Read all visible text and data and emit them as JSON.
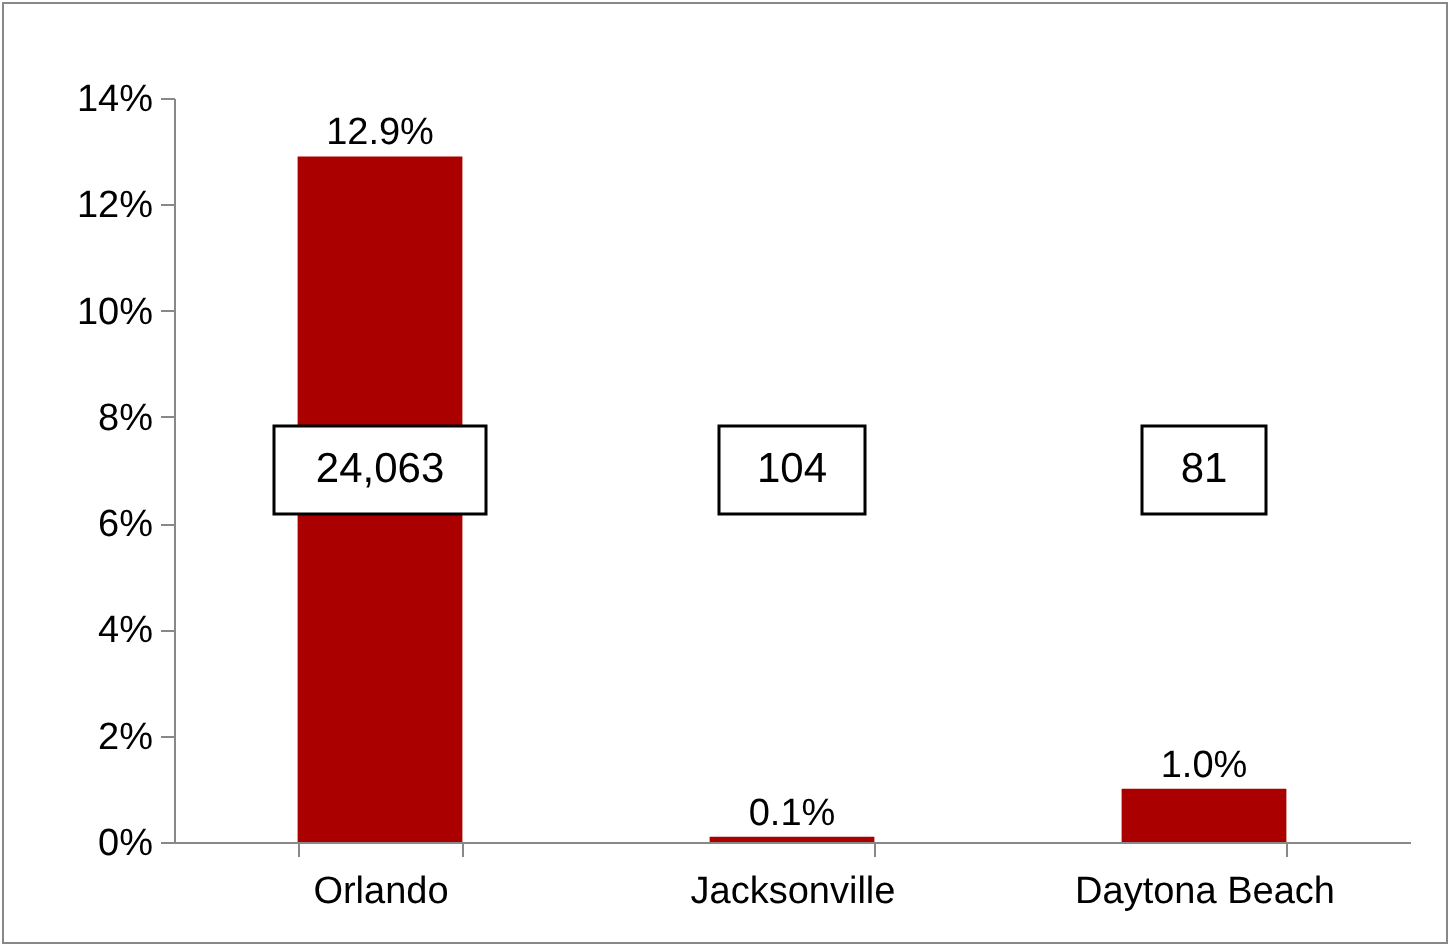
{
  "chart_data": {
    "type": "bar",
    "categories": [
      "Orlando",
      "Jacksonville",
      "Daytona Beach"
    ],
    "values": [
      12.9,
      0.1,
      1.0
    ],
    "value_labels": [
      "12.9%",
      "0.1%",
      "1.0%"
    ],
    "color": "#aa0000",
    "ylim": [
      0,
      14
    ],
    "yticks": [
      {
        "value": 0,
        "label": "0%"
      },
      {
        "value": 2,
        "label": "2%"
      },
      {
        "value": 4,
        "label": "4%"
      },
      {
        "value": 6,
        "label": "6%"
      },
      {
        "value": 8,
        "label": "8%"
      },
      {
        "value": 10,
        "label": "10%"
      },
      {
        "value": 12,
        "label": "12%"
      },
      {
        "value": 14,
        "label": "14%"
      }
    ],
    "annotations": [
      "24,063",
      "104",
      "81"
    ]
  }
}
